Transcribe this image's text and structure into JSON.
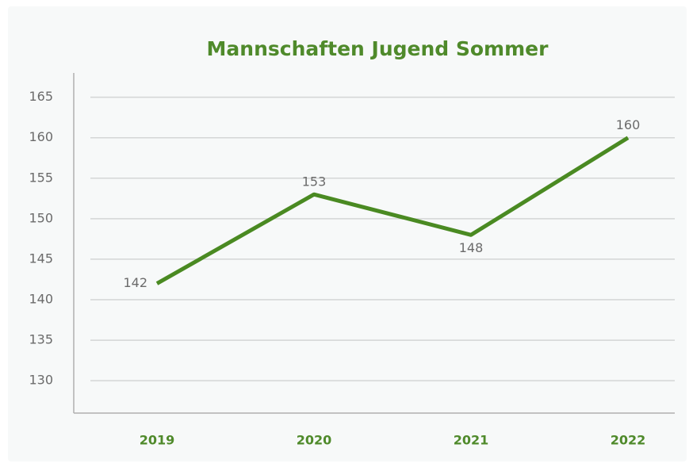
{
  "chart_data": {
    "type": "line",
    "title": "Mannschaften Jugend Sommer",
    "categories": [
      "2019",
      "2020",
      "2021",
      "2022"
    ],
    "series": [
      {
        "name": "Mannschaften",
        "color": "#4a8a22",
        "values": [
          142,
          153,
          148,
          160
        ]
      }
    ],
    "ylim": [
      126,
      168
    ],
    "yticks": [
      130,
      135,
      140,
      145,
      150,
      155,
      160,
      165
    ],
    "grid": true
  }
}
